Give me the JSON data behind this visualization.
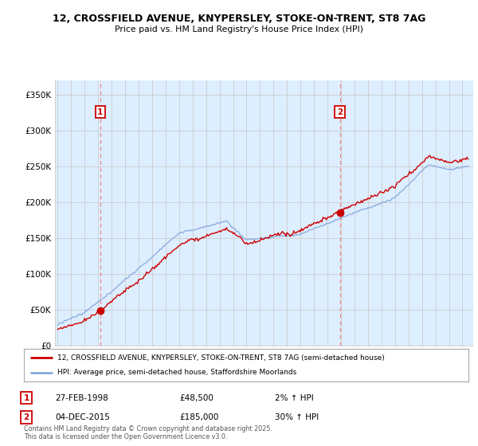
{
  "title1": "12, CROSSFIELD AVENUE, KNYPERSLEY, STOKE-ON-TRENT, ST8 7AG",
  "title2": "Price paid vs. HM Land Registry's House Price Index (HPI)",
  "sale1_date": "27-FEB-1998",
  "sale1_price": 48500,
  "sale1_hpi_pct": "2% ↑ HPI",
  "sale2_date": "04-DEC-2015",
  "sale2_price": 185000,
  "sale2_hpi_pct": "30% ↑ HPI",
  "legend1": "12, CROSSFIELD AVENUE, KNYPERSLEY, STOKE-ON-TRENT, ST8 7AG (semi-detached house)",
  "legend2": "HPI: Average price, semi-detached house, Staffordshire Moorlands",
  "footnote": "Contains HM Land Registry data © Crown copyright and database right 2025.\nThis data is licensed under the Open Government Licence v3.0.",
  "line1_color": "#cc0000",
  "line2_color": "#88aadd",
  "sale1_x": 1998.15,
  "sale2_x": 2015.92,
  "ylim_min": 0,
  "ylim_max": 370000,
  "xlim_min": 1994.8,
  "xlim_max": 2025.8,
  "yticks": [
    0,
    50000,
    100000,
    150000,
    200000,
    250000,
    300000,
    350000
  ],
  "ytick_labels": [
    "£0",
    "£50K",
    "£100K",
    "£150K",
    "£200K",
    "£250K",
    "£300K",
    "£350K"
  ],
  "xticks": [
    1995,
    1996,
    1997,
    1998,
    1999,
    2000,
    2001,
    2002,
    2003,
    2004,
    2005,
    2006,
    2007,
    2008,
    2009,
    2010,
    2011,
    2012,
    2013,
    2014,
    2015,
    2016,
    2017,
    2018,
    2019,
    2020,
    2021,
    2022,
    2023,
    2024,
    2025
  ],
  "grid_color": "#cccccc",
  "plot_bg_color": "#ddeeff",
  "fig_bg_color": "#ffffff",
  "vline_color": "#ee8888",
  "annotation_box_color": "#cc0000",
  "sale1_marker_size": 6,
  "sale2_marker_size": 6
}
